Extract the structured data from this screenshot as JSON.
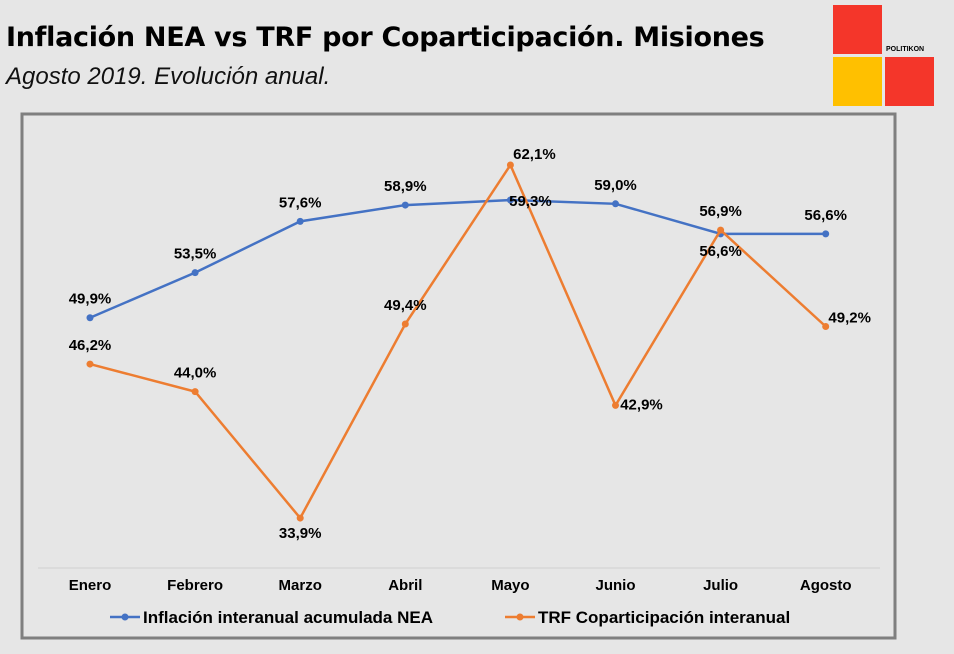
{
  "header": {
    "title": "Inflación NEA vs TRF por Coparticipación. Misiones",
    "subtitle": "Agosto 2019. Evolución anual."
  },
  "logo": {
    "text": "POLITIKON",
    "colors": [
      "#f4362a",
      "#ffc000",
      "#f4362a"
    ]
  },
  "chart_data": {
    "type": "line",
    "categories": [
      "Enero",
      "Febrero",
      "Marzo",
      "Abril",
      "Mayo",
      "Junio",
      "Julio",
      "Agosto"
    ],
    "series": [
      {
        "name": "Inflación interanual acumulada NEA",
        "color": "#4472c4",
        "values": [
          49.9,
          53.5,
          57.6,
          58.9,
          59.3,
          59.0,
          56.6,
          56.6
        ],
        "labels": [
          "49,9%",
          "53,5%",
          "57,6%",
          "58,9%",
          "59,3%",
          "59,0%",
          "56,6%",
          "56,6%"
        ]
      },
      {
        "name": "TRF Coparticipación interanual",
        "color": "#ed7d31",
        "values": [
          46.2,
          44.0,
          33.9,
          49.4,
          62.1,
          42.9,
          56.9,
          49.2
        ],
        "labels": [
          "46,2%",
          "44,0%",
          "33,9%",
          "49,4%",
          "62,1%",
          "42,9%",
          "56,9%",
          "49,2%"
        ]
      }
    ],
    "ylim": [
      30,
      66
    ],
    "grid": false,
    "legend": "bottom"
  }
}
